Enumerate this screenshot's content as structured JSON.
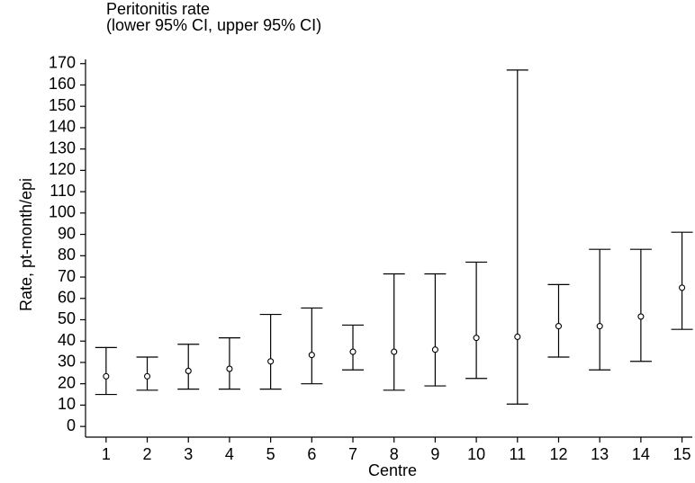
{
  "chart_data": {
    "type": "errorbar",
    "title": "Peritonitis rate",
    "subtitle": "(lower 95% CI, upper 95% CI)",
    "x_label": "Centre",
    "y_label": "Rate, pt-month/epi",
    "x": [
      1,
      2,
      3,
      4,
      5,
      6,
      7,
      8,
      9,
      10,
      11,
      12,
      13,
      14,
      15
    ],
    "series": [
      {
        "name": "Peritonitis rate",
        "color": "#000000",
        "values": [
          23.5,
          23.5,
          26,
          27,
          30.5,
          33.5,
          35,
          35,
          36,
          41.5,
          42,
          47,
          47,
          51.5,
          65
        ],
        "lower": [
          15,
          17,
          17.5,
          17.5,
          17.5,
          20,
          26.5,
          17,
          19,
          22.5,
          10.5,
          32.5,
          26.5,
          30.5,
          45.5
        ],
        "upper": [
          37,
          32.5,
          38.5,
          41.5,
          52.5,
          55.5,
          47.5,
          71.5,
          71.5,
          77,
          167,
          66.5,
          83,
          83,
          91
        ]
      }
    ],
    "xlim": [
      0.5,
      15.25
    ],
    "xticks": [
      1,
      2,
      3,
      4,
      5,
      6,
      7,
      8,
      9,
      10,
      11,
      12,
      13,
      14,
      15
    ],
    "ylim": [
      -5,
      172
    ],
    "yticks": [
      0,
      10,
      20,
      30,
      40,
      50,
      60,
      70,
      80,
      90,
      100,
      110,
      120,
      130,
      140,
      150,
      160,
      170
    ],
    "grid": false
  }
}
